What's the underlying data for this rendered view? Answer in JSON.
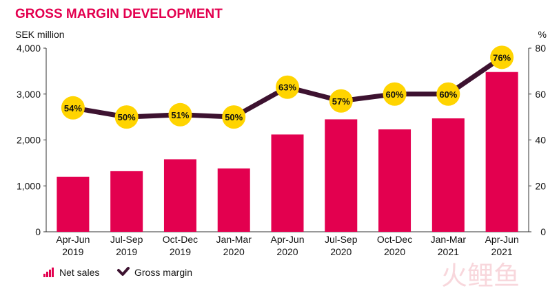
{
  "title": "GROSS MARGIN DEVELOPMENT",
  "colors": {
    "bar": "#e3004f",
    "line": "#3d1230",
    "marker": "#ffd400",
    "title": "#e3004f"
  },
  "watermark": "火鲤鱼",
  "chart_data": {
    "type": "bar",
    "title": "GROSS MARGIN DEVELOPMENT",
    "categories": [
      [
        "Apr-Jun",
        "2019"
      ],
      [
        "Jul-Sep",
        "2019"
      ],
      [
        "Oct-Dec",
        "2019"
      ],
      [
        "Jan-Mar",
        "2020"
      ],
      [
        "Apr-Jun",
        "2020"
      ],
      [
        "Jul-Sep",
        "2020"
      ],
      [
        "Oct-Dec",
        "2020"
      ],
      [
        "Jan-Mar",
        "2021"
      ],
      [
        "Apr-Jun",
        "2021"
      ]
    ],
    "left_axis": {
      "unit_label": "SEK million",
      "ylim": [
        0,
        4000
      ],
      "ticks": [
        0,
        1000,
        2000,
        3000,
        4000
      ],
      "tick_labels": [
        "0",
        "1,000",
        "2,000",
        "3,000",
        "4,000"
      ]
    },
    "right_axis": {
      "unit_label": "%",
      "ylim": [
        0,
        80
      ],
      "ticks": [
        0,
        20,
        40,
        60,
        80
      ],
      "tick_labels": [
        "0",
        "20",
        "40",
        "60",
        "80"
      ]
    },
    "series": [
      {
        "name": "Net sales",
        "type": "bar",
        "axis": "left",
        "values": [
          1200,
          1320,
          1580,
          1380,
          2120,
          2450,
          2230,
          2470,
          3480
        ]
      },
      {
        "name": "Gross margin",
        "type": "line",
        "axis": "right",
        "values": [
          54,
          50,
          51,
          50,
          63,
          57,
          60,
          60,
          76
        ],
        "labels": [
          "54%",
          "50%",
          "51%",
          "50%",
          "63%",
          "57%",
          "60%",
          "60%",
          "76%"
        ]
      }
    ],
    "legend": {
      "placement": "bottom-left",
      "items": [
        "Net sales",
        "Gross margin"
      ]
    },
    "grid": false
  }
}
